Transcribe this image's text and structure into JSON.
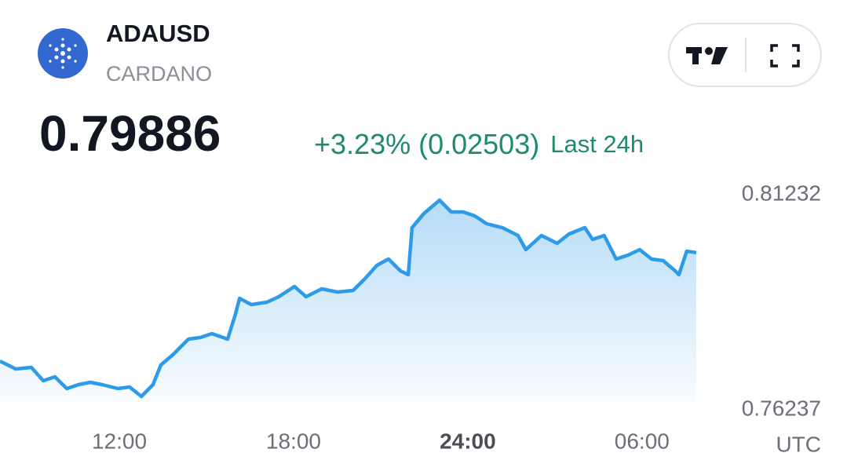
{
  "header": {
    "symbol": "ADAUSD",
    "name": "CARDANO",
    "price": "0.79886",
    "change": "+3.23% (0.02503)",
    "period": "Last 24h"
  },
  "chart_data": {
    "type": "area",
    "color": "#2e9be8",
    "x": [
      7.89,
      8.43,
      8.97,
      9.38,
      9.78,
      10.19,
      10.59,
      11.0,
      11.41,
      11.95,
      12.35,
      12.76,
      13.16,
      13.43,
      13.84,
      14.38,
      14.78,
      15.19,
      15.73,
      16.0,
      16.14,
      16.54,
      17.08,
      17.49,
      18.03,
      18.43,
      18.97,
      19.51,
      20.05,
      20.46,
      20.87,
      21.27,
      21.68,
      21.95,
      22.08,
      22.49,
      23.03,
      23.43,
      23.84,
      24.24,
      24.65,
      25.19,
      25.73,
      26.0,
      26.54,
      27.08,
      27.49,
      28.03,
      28.3,
      28.7,
      29.11,
      29.52,
      29.92,
      30.33,
      30.73,
      31.14,
      31.27,
      31.54,
      31.87
    ],
    "values": [
      0.77367,
      0.77185,
      0.77221,
      0.76911,
      0.77003,
      0.76729,
      0.7682,
      0.76875,
      0.7682,
      0.76729,
      0.76766,
      0.76547,
      0.7682,
      0.77276,
      0.77513,
      0.77878,
      0.77914,
      0.78005,
      0.77878,
      0.78461,
      0.78826,
      0.7868,
      0.78734,
      0.78862,
      0.79099,
      0.78862,
      0.79044,
      0.78971,
      0.79008,
      0.79281,
      0.79591,
      0.79737,
      0.79464,
      0.79373,
      0.80466,
      0.80794,
      0.81104,
      0.80831,
      0.80831,
      0.8074,
      0.80557,
      0.80466,
      0.80284,
      0.79956,
      0.80284,
      0.80102,
      0.8032,
      0.80466,
      0.80193,
      0.80284,
      0.79737,
      0.79828,
      0.79956,
      0.79737,
      0.79701,
      0.79464,
      0.79373,
      0.79919,
      0.79886
    ],
    "xlim": [
      7.89,
      31.87
    ],
    "xticks": [
      {
        "value": 12,
        "label": "12:00"
      },
      {
        "value": 18,
        "label": "18:00"
      },
      {
        "value": 24,
        "label": "24:00"
      },
      {
        "value": 30,
        "label": "06:00"
      }
    ],
    "ylim": [
      0.76237,
      0.81232
    ],
    "yticks": [
      0.81232,
      0.76237
    ],
    "x_unit": "UTC"
  }
}
